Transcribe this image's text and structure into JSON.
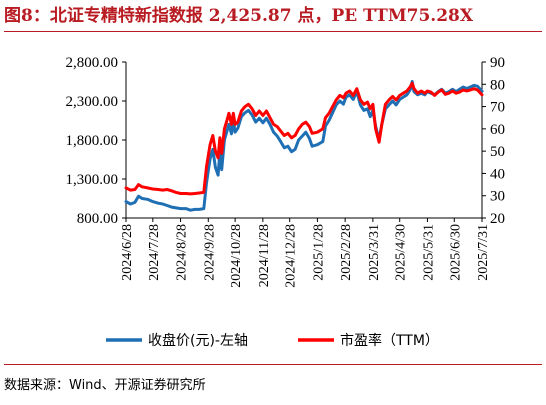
{
  "header": {
    "title": "图8：北证专精特新指数报 2,425.87 点，PE TTM75.28X"
  },
  "footer": {
    "source": "数据来源：Wind、开源证券研究所"
  },
  "colors": {
    "accent": "#b81c22",
    "series_index": "#1f6fb5",
    "series_pe": "#ff0000"
  },
  "chart_data": {
    "type": "line",
    "title": "北证专精特新指数报 2,425.87 点，PE TTM75.28X",
    "x_labels": [
      "2024/6/28",
      "2024/7/28",
      "2024/8/28",
      "2024/9/28",
      "2024/10/28",
      "2024/11/28",
      "2024/12/28",
      "2025/1/28",
      "2025/2/28",
      "2025/3/31",
      "2025/4/30",
      "2025/5/31",
      "2025/6/30",
      "2025/7/31"
    ],
    "y_left": {
      "ticks": [
        "2,800.00",
        "2,300.00",
        "1,800.00",
        "1,300.00",
        "800.00"
      ],
      "ylim": [
        800,
        2800
      ]
    },
    "y_right": {
      "ticks": [
        "90",
        "80",
        "70",
        "60",
        "50",
        "40",
        "30",
        "20"
      ],
      "ylim": [
        20,
        90
      ]
    },
    "grid": false,
    "legend_position": "bottom",
    "series": [
      {
        "name": "收盘价(元)-左轴",
        "axis": "left",
        "color": "#1f6fb5",
        "points": [
          [
            "2024/6/28",
            1010
          ],
          [
            "2024/7/3",
            980
          ],
          [
            "2024/7/8",
            1000
          ],
          [
            "2024/7/12",
            1080
          ],
          [
            "2024/7/16",
            1050
          ],
          [
            "2024/7/22",
            1040
          ],
          [
            "2024/7/28",
            1010
          ],
          [
            "2024/8/3",
            990
          ],
          [
            "2024/8/8",
            980
          ],
          [
            "2024/8/13",
            960
          ],
          [
            "2024/8/18",
            940
          ],
          [
            "2024/8/23",
            930
          ],
          [
            "2024/8/28",
            920
          ],
          [
            "2024/9/3",
            920
          ],
          [
            "2024/9/8",
            900
          ],
          [
            "2024/9/13",
            910
          ],
          [
            "2024/9/18",
            910
          ],
          [
            "2024/9/23",
            920
          ],
          [
            "2024/9/26",
            1250
          ],
          [
            "2024/9/30",
            1560
          ],
          [
            "2024/10/3",
            1680
          ],
          [
            "2024/10/6",
            1450
          ],
          [
            "2024/10/9",
            1350
          ],
          [
            "2024/10/11",
            1650
          ],
          [
            "2024/10/13",
            1420
          ],
          [
            "2024/10/16",
            1800
          ],
          [
            "2024/10/19",
            1920
          ],
          [
            "2024/10/21",
            2000
          ],
          [
            "2024/10/24",
            1880
          ],
          [
            "2024/10/26",
            2050
          ],
          [
            "2024/10/28",
            1900
          ],
          [
            "2024/10/31",
            1950
          ],
          [
            "2024/11/4",
            2100
          ],
          [
            "2024/11/8",
            2150
          ],
          [
            "2024/11/12",
            2180
          ],
          [
            "2024/11/16",
            2120
          ],
          [
            "2024/11/20",
            2030
          ],
          [
            "2024/11/24",
            2080
          ],
          [
            "2024/11/28",
            2020
          ],
          [
            "2024/12/2",
            2080
          ],
          [
            "2024/12/6",
            2000
          ],
          [
            "2024/12/10",
            1900
          ],
          [
            "2024/12/14",
            1850
          ],
          [
            "2024/12/18",
            1780
          ],
          [
            "2024/12/22",
            1700
          ],
          [
            "2024/12/26",
            1720
          ],
          [
            "2024/12/30",
            1650
          ],
          [
            "2025/1/3",
            1680
          ],
          [
            "2025/1/7",
            1800
          ],
          [
            "2025/1/11",
            1850
          ],
          [
            "2025/1/15",
            1900
          ],
          [
            "2025/1/19",
            1820
          ],
          [
            "2025/1/22",
            1720
          ],
          [
            "2025/1/28",
            1740
          ],
          [
            "2025/2/3",
            1780
          ],
          [
            "2025/2/6",
            1980
          ],
          [
            "2025/2/10",
            2050
          ],
          [
            "2025/2/14",
            2150
          ],
          [
            "2025/2/18",
            2250
          ],
          [
            "2025/2/22",
            2300
          ],
          [
            "2025/2/26",
            2260
          ],
          [
            "2025/3/1",
            2350
          ],
          [
            "2025/3/5",
            2380
          ],
          [
            "2025/3/9",
            2320
          ],
          [
            "2025/3/13",
            2420
          ],
          [
            "2025/3/17",
            2250
          ],
          [
            "2025/3/21",
            2180
          ],
          [
            "2025/3/25",
            2200
          ],
          [
            "2025/3/28",
            2100
          ],
          [
            "2025/3/31",
            2180
          ],
          [
            "2025/4/3",
            1980
          ],
          [
            "2025/4/7",
            1800
          ],
          [
            "2025/4/10",
            2000
          ],
          [
            "2025/4/14",
            2200
          ],
          [
            "2025/4/18",
            2250
          ],
          [
            "2025/4/22",
            2300
          ],
          [
            "2025/4/26",
            2250
          ],
          [
            "2025/4/30",
            2320
          ],
          [
            "2025/5/4",
            2350
          ],
          [
            "2025/5/8",
            2380
          ],
          [
            "2025/5/12",
            2450
          ],
          [
            "2025/5/14",
            2550
          ],
          [
            "2025/5/16",
            2420
          ],
          [
            "2025/5/20",
            2380
          ],
          [
            "2025/5/24",
            2400
          ],
          [
            "2025/5/28",
            2380
          ],
          [
            "2025/5/31",
            2420
          ],
          [
            "2025/6/4",
            2400
          ],
          [
            "2025/6/8",
            2380
          ],
          [
            "2025/6/12",
            2420
          ],
          [
            "2025/6/16",
            2450
          ],
          [
            "2025/6/20",
            2400
          ],
          [
            "2025/6/24",
            2420
          ],
          [
            "2025/6/28",
            2450
          ],
          [
            "2025/7/2",
            2420
          ],
          [
            "2025/7/6",
            2450
          ],
          [
            "2025/7/10",
            2480
          ],
          [
            "2025/7/14",
            2460
          ],
          [
            "2025/7/18",
            2480
          ],
          [
            "2025/7/22",
            2500
          ],
          [
            "2025/7/26",
            2490
          ],
          [
            "2025/7/31",
            2426
          ]
        ]
      },
      {
        "name": "市盈率（TTM）",
        "axis": "right",
        "color": "#ff0000",
        "points": [
          [
            "2024/6/28",
            33.5
          ],
          [
            "2024/7/3",
            32.5
          ],
          [
            "2024/7/8",
            32.8
          ],
          [
            "2024/7/12",
            35
          ],
          [
            "2024/7/16",
            34
          ],
          [
            "2024/7/22",
            33.5
          ],
          [
            "2024/7/28",
            33
          ],
          [
            "2024/8/3",
            32.8
          ],
          [
            "2024/8/8",
            32.5
          ],
          [
            "2024/8/13",
            32.8
          ],
          [
            "2024/8/18",
            32.2
          ],
          [
            "2024/8/23",
            31.5
          ],
          [
            "2024/8/28",
            31
          ],
          [
            "2024/9/3",
            31
          ],
          [
            "2024/9/8",
            30.8
          ],
          [
            "2024/9/13",
            31
          ],
          [
            "2024/9/18",
            31.2
          ],
          [
            "2024/9/23",
            31.5
          ],
          [
            "2024/9/26",
            43
          ],
          [
            "2024/9/30",
            53
          ],
          [
            "2024/10/3",
            57
          ],
          [
            "2024/10/6",
            50
          ],
          [
            "2024/10/9",
            47
          ],
          [
            "2024/10/11",
            56
          ],
          [
            "2024/10/13",
            49
          ],
          [
            "2024/10/16",
            60
          ],
          [
            "2024/10/19",
            64
          ],
          [
            "2024/10/21",
            67
          ],
          [
            "2024/10/24",
            62
          ],
          [
            "2024/10/26",
            67
          ],
          [
            "2024/10/28",
            62
          ],
          [
            "2024/10/31",
            63
          ],
          [
            "2024/11/4",
            68
          ],
          [
            "2024/11/8",
            70
          ],
          [
            "2024/11/12",
            71
          ],
          [
            "2024/11/16",
            69
          ],
          [
            "2024/11/20",
            66
          ],
          [
            "2024/11/24",
            68
          ],
          [
            "2024/11/28",
            66
          ],
          [
            "2024/12/2",
            68
          ],
          [
            "2024/12/6",
            65
          ],
          [
            "2024/12/10",
            62
          ],
          [
            "2024/12/14",
            61
          ],
          [
            "2024/12/18",
            59
          ],
          [
            "2024/12/22",
            57
          ],
          [
            "2024/12/26",
            58
          ],
          [
            "2024/12/30",
            56
          ],
          [
            "2025/1/3",
            57
          ],
          [
            "2025/1/7",
            60
          ],
          [
            "2025/1/11",
            62
          ],
          [
            "2025/1/15",
            63
          ],
          [
            "2025/1/19",
            61
          ],
          [
            "2025/1/22",
            58
          ],
          [
            "2025/1/28",
            58.5
          ],
          [
            "2025/2/3",
            60
          ],
          [
            "2025/2/6",
            65
          ],
          [
            "2025/2/10",
            67
          ],
          [
            "2025/2/14",
            70
          ],
          [
            "2025/2/18",
            73
          ],
          [
            "2025/2/22",
            75
          ],
          [
            "2025/2/26",
            74
          ],
          [
            "2025/3/1",
            76
          ],
          [
            "2025/3/5",
            77
          ],
          [
            "2025/3/9",
            75
          ],
          [
            "2025/3/13",
            78
          ],
          [
            "2025/3/17",
            73
          ],
          [
            "2025/3/21",
            71
          ],
          [
            "2025/3/25",
            72
          ],
          [
            "2025/3/28",
            69
          ],
          [
            "2025/3/31",
            71
          ],
          [
            "2025/4/3",
            60
          ],
          [
            "2025/4/7",
            54
          ],
          [
            "2025/4/10",
            62
          ],
          [
            "2025/4/14",
            71
          ],
          [
            "2025/4/18",
            73
          ],
          [
            "2025/4/22",
            74.5
          ],
          [
            "2025/4/26",
            73
          ],
          [
            "2025/4/30",
            75
          ],
          [
            "2025/5/4",
            76
          ],
          [
            "2025/5/8",
            77
          ],
          [
            "2025/5/12",
            79
          ],
          [
            "2025/5/14",
            80.5
          ],
          [
            "2025/5/16",
            78
          ],
          [
            "2025/5/20",
            76
          ],
          [
            "2025/5/24",
            77
          ],
          [
            "2025/5/28",
            76
          ],
          [
            "2025/5/31",
            77
          ],
          [
            "2025/6/4",
            76.5
          ],
          [
            "2025/6/8",
            75
          ],
          [
            "2025/6/12",
            76.5
          ],
          [
            "2025/6/16",
            77.5
          ],
          [
            "2025/6/20",
            75.5
          ],
          [
            "2025/6/24",
            76
          ],
          [
            "2025/6/28",
            77
          ],
          [
            "2025/7/2",
            76
          ],
          [
            "2025/7/6",
            76.5
          ],
          [
            "2025/7/10",
            77.5
          ],
          [
            "2025/7/14",
            77
          ],
          [
            "2025/7/18",
            77.5
          ],
          [
            "2025/7/22",
            78
          ],
          [
            "2025/7/26",
            77.5
          ],
          [
            "2025/7/31",
            75.28
          ]
        ]
      }
    ]
  }
}
